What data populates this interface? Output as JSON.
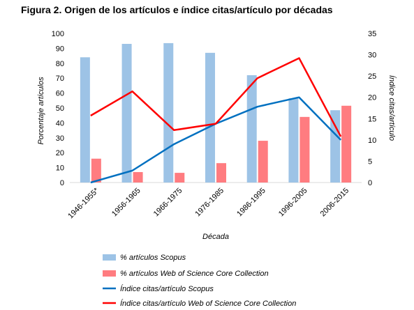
{
  "chart_data": {
    "type": "bar",
    "title": "Figura 2. Origen de los artículos e índice citas/artículo por décadas",
    "xlabel": "Década",
    "ylabel": "Porcentaje artículos",
    "y2label": "Índice citas/artículo",
    "categories": [
      "1946-1955*",
      "1956-1965",
      "1966-1975",
      "1976-1985",
      "1986-1995",
      "1996-2005",
      "2006-2015"
    ],
    "ylim": [
      0,
      100
    ],
    "y2lim": [
      0,
      35
    ],
    "yticks": [
      0,
      10,
      20,
      30,
      40,
      50,
      60,
      70,
      80,
      90,
      100
    ],
    "y2ticks": [
      0,
      5,
      10,
      15,
      20,
      25,
      30,
      35
    ],
    "grid": false,
    "legend_position": "bottom",
    "series": [
      {
        "name": "% artículos Scopus",
        "kind": "bar",
        "axis": "left",
        "color": "#9dc3e6",
        "values": [
          84,
          93,
          93.5,
          87,
          72,
          56.5,
          48.5
        ]
      },
      {
        "name": "% artículos Web of Science Core Collection",
        "kind": "bar",
        "axis": "left",
        "color": "#ff7c80",
        "values": [
          16,
          7,
          6.5,
          13,
          28,
          44,
          51.5
        ]
      },
      {
        "name": "Índice citas/artículo Scopus",
        "kind": "line",
        "axis": "right",
        "color": "#0070c0",
        "values": [
          0,
          2.8,
          9,
          13.8,
          17.8,
          20,
          10
        ]
      },
      {
        "name": "Índice citas/artículo Web of Science Core Collection",
        "kind": "line",
        "axis": "right",
        "color": "#ff0000",
        "values": [
          15.7,
          21.4,
          12.3,
          13.8,
          24.5,
          29.2,
          10.8
        ]
      }
    ]
  }
}
